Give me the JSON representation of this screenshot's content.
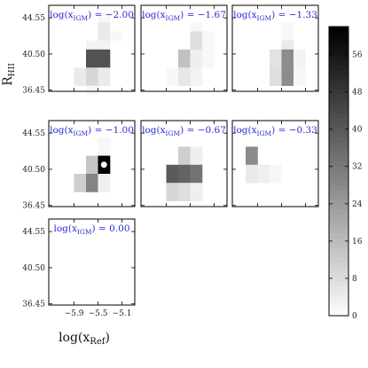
{
  "chart_data": {
    "type": "heatmap",
    "colormap": "greys",
    "xlabel_main": "log(x",
    "xlabel_sub": "Ref",
    "xlabel_close": ")",
    "ylabel_main": "R",
    "ylabel_sub": "HII",
    "x_ticks": [
      "−5.9",
      "−5.5",
      "−5.1"
    ],
    "y_ticks": [
      "44.55",
      "40.50",
      "36.45"
    ],
    "colorbar_ticks": [
      "0",
      "8",
      "16",
      "24",
      "32",
      "40",
      "48",
      "56"
    ],
    "colorbar_range": [
      0,
      62
    ],
    "panels": [
      {
        "title_pre": "log(x",
        "title_sub": "IGM",
        "title_post": ") = −2.00",
        "cells": [
          [
            0,
            0,
            0,
            2,
            0,
            0,
            0
          ],
          [
            0,
            0,
            0,
            5,
            0,
            0,
            0
          ],
          [
            0,
            0,
            0,
            5,
            2,
            0,
            0
          ],
          [
            0,
            0,
            3,
            3,
            0,
            0,
            0
          ],
          [
            0,
            0,
            42,
            42,
            0,
            0,
            0
          ],
          [
            0,
            0,
            42,
            42,
            0,
            0,
            0
          ],
          [
            0,
            5,
            10,
            5,
            0,
            0,
            0
          ],
          [
            0,
            5,
            10,
            5,
            0,
            0,
            0
          ],
          [
            0,
            0,
            2,
            0,
            0,
            0,
            0
          ]
        ]
      },
      {
        "title_pre": "log(x",
        "title_sub": "IGM",
        "title_post": ") = −1.67",
        "cells": [
          [
            0,
            0,
            0,
            0,
            0,
            0,
            0
          ],
          [
            0,
            0,
            0,
            2,
            0,
            0,
            0
          ],
          [
            0,
            0,
            0,
            8,
            2,
            0,
            0
          ],
          [
            0,
            0,
            0,
            8,
            2,
            0,
            0
          ],
          [
            0,
            0,
            15,
            4,
            2,
            0,
            0
          ],
          [
            0,
            0,
            15,
            4,
            2,
            0,
            0
          ],
          [
            0,
            2,
            6,
            3,
            0,
            0,
            0
          ],
          [
            0,
            2,
            6,
            3,
            0,
            0,
            0
          ],
          [
            0,
            0,
            0,
            0,
            0,
            0,
            0
          ]
        ]
      },
      {
        "title_pre": "log(x",
        "title_sub": "IGM",
        "title_post": ") = −1.33",
        "cells": [
          [
            0,
            0,
            0,
            0,
            0,
            0,
            0
          ],
          [
            0,
            0,
            0,
            2,
            0,
            0,
            0
          ],
          [
            0,
            0,
            0,
            2,
            0,
            0,
            0
          ],
          [
            0,
            0,
            0,
            5,
            0,
            0,
            0
          ],
          [
            0,
            0,
            7,
            28,
            3,
            0,
            0
          ],
          [
            0,
            0,
            7,
            28,
            3,
            0,
            0
          ],
          [
            0,
            0,
            8,
            28,
            2,
            0,
            0
          ],
          [
            0,
            0,
            8,
            28,
            2,
            0,
            0
          ],
          [
            0,
            0,
            0,
            0,
            0,
            0,
            0
          ]
        ]
      },
      {
        "title_pre": "log(x",
        "title_sub": "IGM",
        "title_post": ") = −1.00",
        "cells": [
          [
            0,
            0,
            0,
            0,
            0,
            0,
            0
          ],
          [
            0,
            0,
            0,
            2,
            0,
            0,
            0
          ],
          [
            0,
            0,
            0,
            2,
            0,
            0,
            0
          ],
          [
            0,
            0,
            14,
            62,
            0,
            0,
            0
          ],
          [
            0,
            0,
            14,
            62,
            0,
            0,
            0
          ],
          [
            0,
            12,
            30,
            4,
            0,
            0,
            0
          ],
          [
            0,
            12,
            30,
            4,
            0,
            0,
            0
          ],
          [
            0,
            0,
            0,
            0,
            0,
            0,
            0
          ],
          [
            0,
            0,
            0,
            0,
            0,
            0,
            0
          ]
        ]
      },
      {
        "title_pre": "log(x",
        "title_sub": "IGM",
        "title_post": ") = −0.67",
        "cells": [
          [
            0,
            0,
            0,
            0,
            0,
            0,
            0
          ],
          [
            0,
            0,
            0,
            0,
            0,
            0,
            0
          ],
          [
            0,
            0,
            12,
            4,
            0,
            0,
            0
          ],
          [
            0,
            0,
            12,
            4,
            0,
            0,
            0
          ],
          [
            0,
            40,
            38,
            34,
            0,
            0,
            0
          ],
          [
            0,
            40,
            38,
            34,
            0,
            0,
            0
          ],
          [
            0,
            10,
            8,
            4,
            0,
            0,
            0
          ],
          [
            0,
            10,
            8,
            4,
            0,
            0,
            0
          ],
          [
            0,
            0,
            0,
            0,
            0,
            0,
            0
          ]
        ]
      },
      {
        "title_pre": "log(x",
        "title_sub": "IGM",
        "title_post": ") = −0.33",
        "cells": [
          [
            0,
            0,
            0,
            0,
            0,
            0,
            0
          ],
          [
            0,
            0,
            0,
            0,
            0,
            0,
            0
          ],
          [
            28,
            0,
            0,
            0,
            0,
            0,
            0
          ],
          [
            28,
            0,
            0,
            0,
            0,
            0,
            0
          ],
          [
            5,
            4,
            2,
            0,
            0,
            0,
            0
          ],
          [
            5,
            4,
            2,
            0,
            0,
            0,
            0
          ],
          [
            0,
            0,
            0,
            0,
            0,
            0,
            0
          ],
          [
            0,
            0,
            0,
            0,
            0,
            0,
            0
          ],
          [
            0,
            0,
            0,
            0,
            0,
            0,
            0
          ]
        ]
      },
      {
        "title_pre": "log(x",
        "title_sub": "IGM",
        "title_post": ") = 0.00",
        "cells": [
          [
            0,
            0,
            0,
            0,
            0,
            0,
            0
          ],
          [
            0,
            0,
            0,
            0,
            0,
            0,
            0
          ],
          [
            0,
            0,
            0,
            0,
            0,
            0,
            0
          ],
          [
            0,
            0,
            0,
            0,
            0,
            0,
            0
          ],
          [
            0,
            0,
            0,
            0,
            0,
            0,
            0
          ],
          [
            0,
            0,
            0,
            0,
            0,
            0,
            0
          ],
          [
            0,
            0,
            0,
            0,
            0,
            0,
            0
          ],
          [
            0,
            0,
            0,
            0,
            0,
            0,
            0
          ],
          [
            0,
            0,
            0,
            0,
            0,
            0,
            0
          ]
        ]
      }
    ],
    "marker": {
      "panel": 3,
      "row": 3.5,
      "col": 3.0,
      "shape": "circle",
      "color": "#ffffff"
    }
  }
}
